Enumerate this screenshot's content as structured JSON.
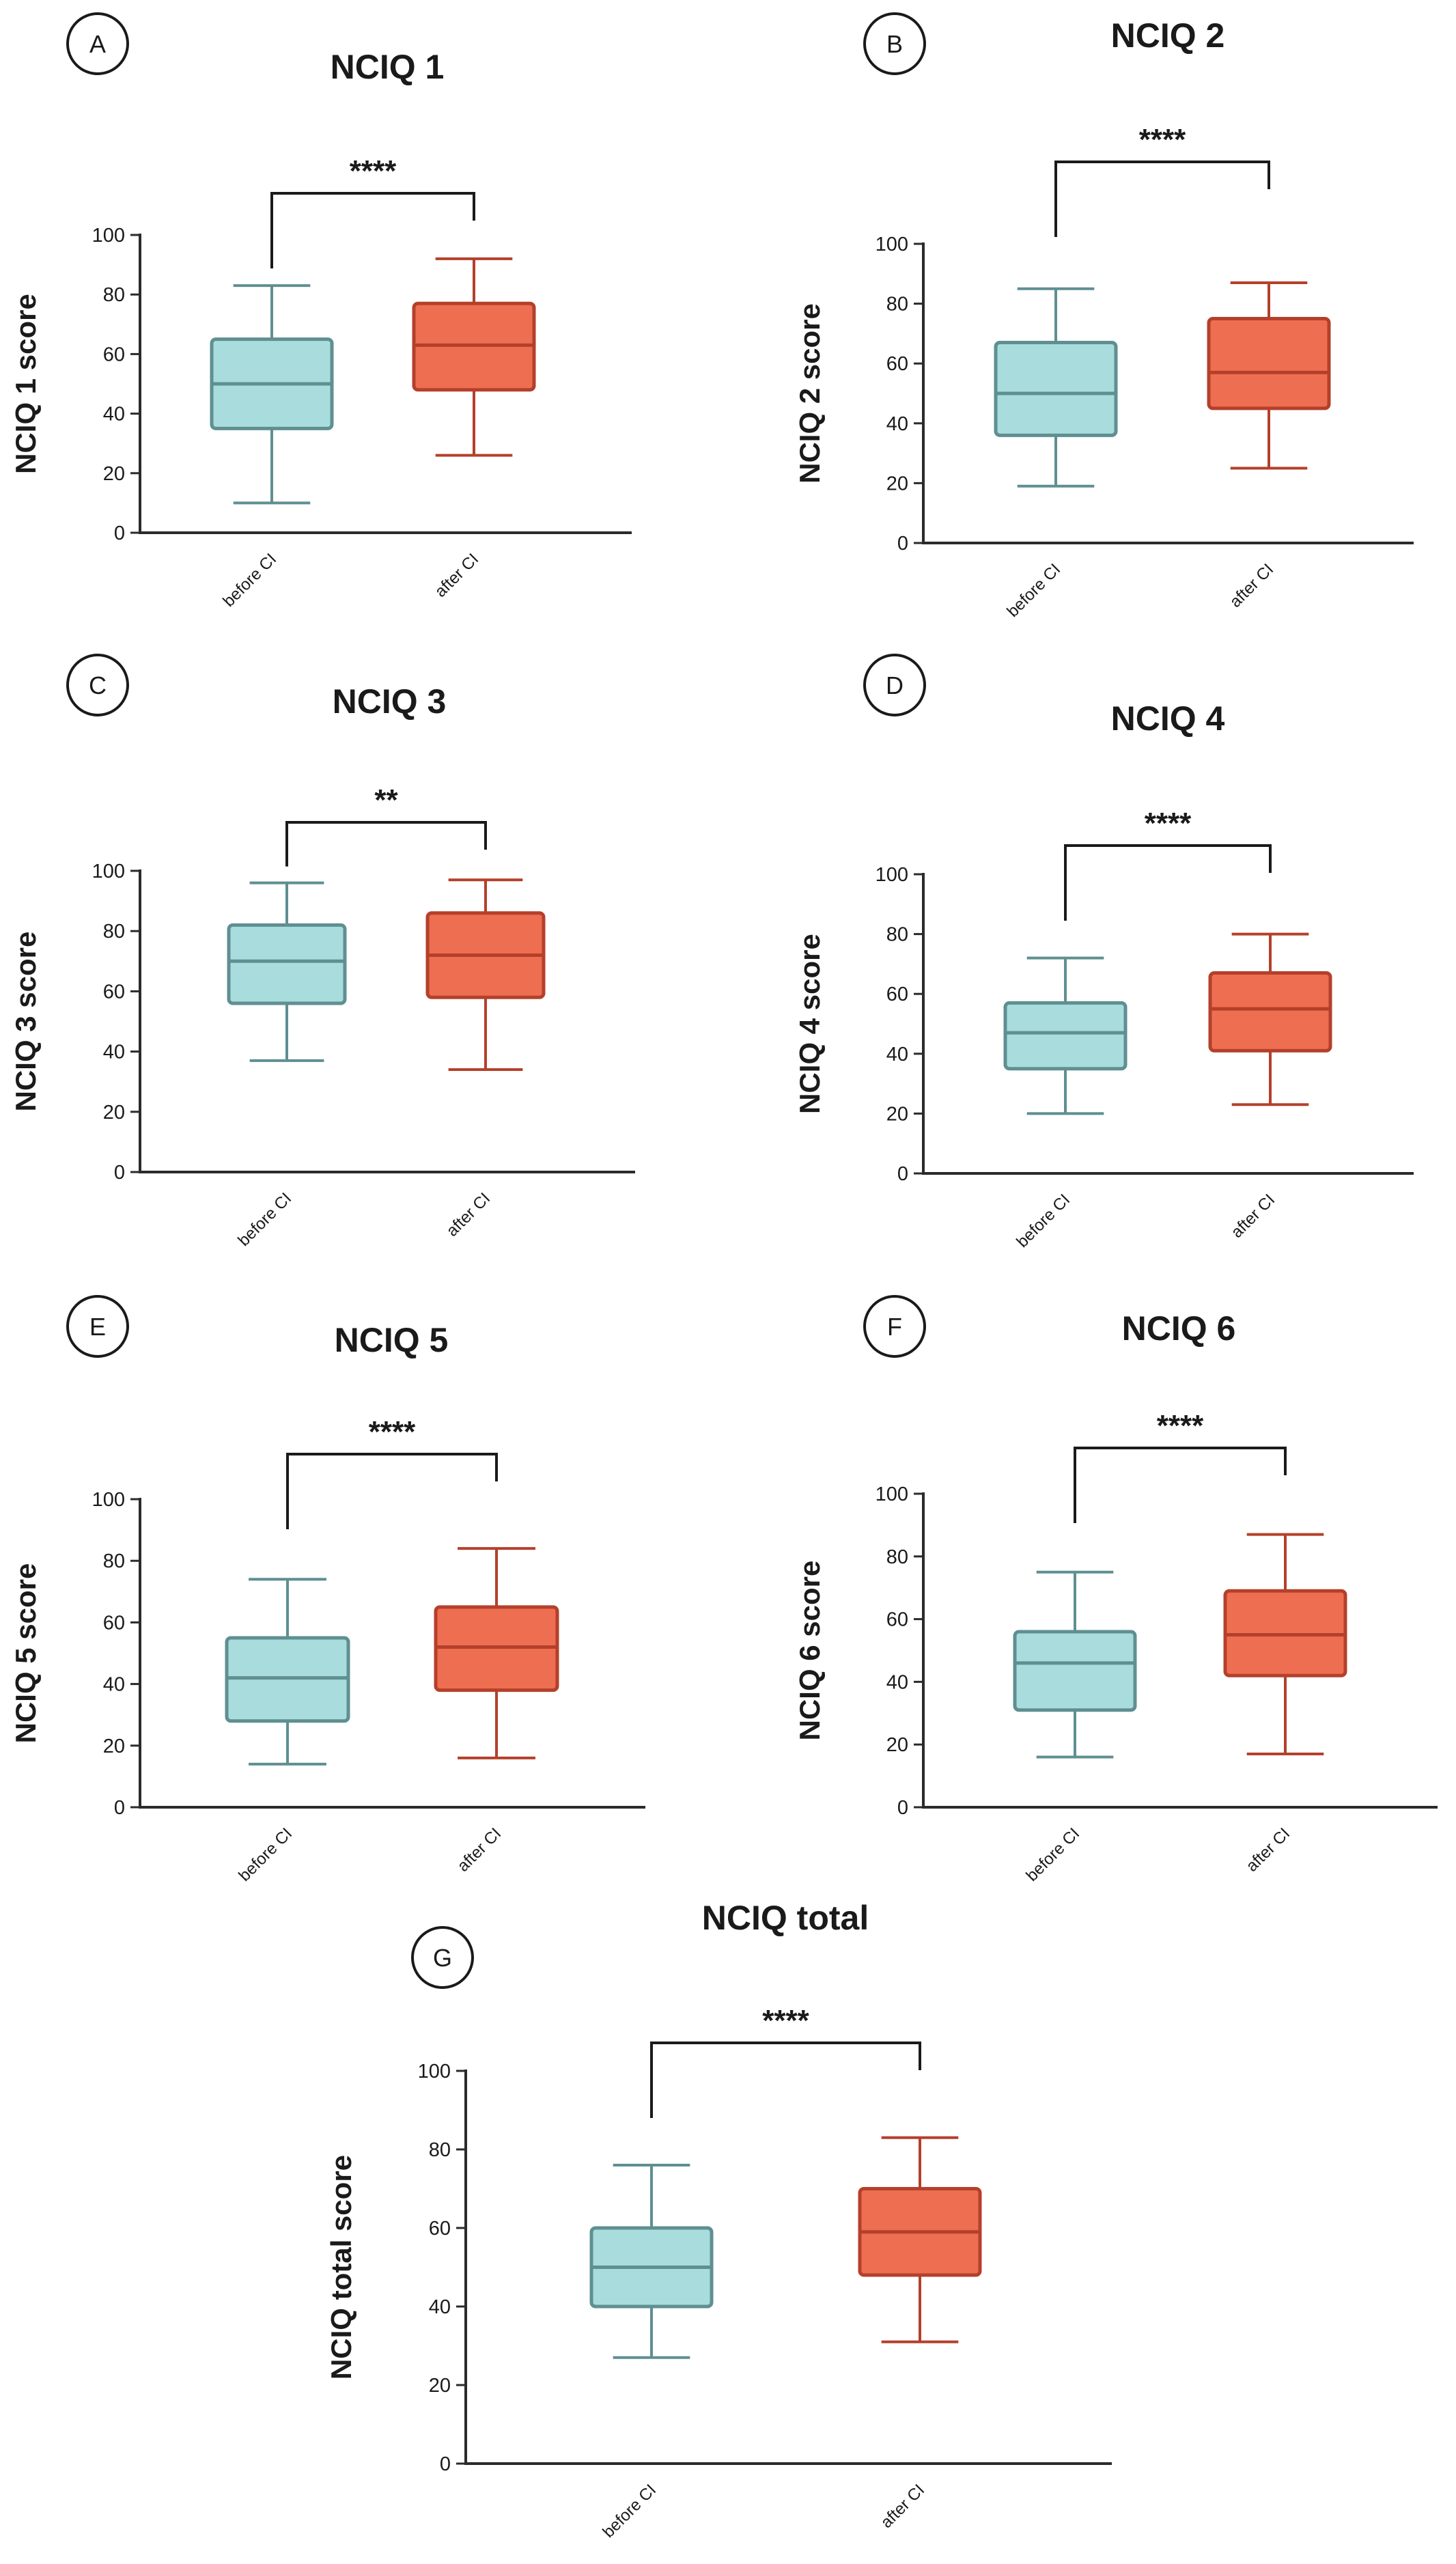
{
  "colors": {
    "before_fill": "#a9dcdc",
    "before_stroke": "#5f8f91",
    "after_fill": "#ee6e51",
    "after_stroke": "#b4402b",
    "axis": "#2b2b2b"
  },
  "chart_data": [
    {
      "panel": "A",
      "type": "box",
      "title": "NCIQ 1",
      "ylabel": "NCIQ 1 score",
      "categories": [
        "before CI",
        "after CI"
      ],
      "ylim": [
        0,
        100
      ],
      "yticks": [
        0,
        20,
        40,
        60,
        80,
        100
      ],
      "series": [
        {
          "name": "before CI",
          "min": 10,
          "q1": 35,
          "median": 50,
          "q3": 65,
          "max": 83
        },
        {
          "name": "after CI",
          "min": 26,
          "q1": 48,
          "median": 63,
          "q3": 77,
          "max": 92
        }
      ],
      "significance": "****"
    },
    {
      "panel": "B",
      "type": "box",
      "title": "NCIQ 2",
      "ylabel": "NCIQ 2 score",
      "categories": [
        "before CI",
        "after CI"
      ],
      "ylim": [
        0,
        100
      ],
      "yticks": [
        0,
        20,
        40,
        60,
        80,
        100
      ],
      "series": [
        {
          "name": "before CI",
          "min": 19,
          "q1": 36,
          "median": 50,
          "q3": 67,
          "max": 85
        },
        {
          "name": "after CI",
          "min": 25,
          "q1": 45,
          "median": 57,
          "q3": 75,
          "max": 87
        }
      ],
      "significance": "****"
    },
    {
      "panel": "C",
      "type": "box",
      "title": "NCIQ 3",
      "ylabel": "NCIQ 3 score",
      "categories": [
        "before CI",
        "after CI"
      ],
      "ylim": [
        0,
        100
      ],
      "yticks": [
        0,
        20,
        40,
        60,
        80,
        100
      ],
      "series": [
        {
          "name": "before CI",
          "min": 37,
          "q1": 56,
          "median": 70,
          "q3": 82,
          "max": 96
        },
        {
          "name": "after CI",
          "min": 34,
          "q1": 58,
          "median": 72,
          "q3": 86,
          "max": 97
        }
      ],
      "significance": "**"
    },
    {
      "panel": "D",
      "type": "box",
      "title": "NCIQ 4",
      "ylabel": "NCIQ 4 score",
      "categories": [
        "before CI",
        "after CI"
      ],
      "ylim": [
        0,
        100
      ],
      "yticks": [
        0,
        20,
        40,
        60,
        80,
        100
      ],
      "series": [
        {
          "name": "before CI",
          "min": 20,
          "q1": 35,
          "median": 47,
          "q3": 57,
          "max": 72
        },
        {
          "name": "after CI",
          "min": 23,
          "q1": 41,
          "median": 55,
          "q3": 67,
          "max": 80
        }
      ],
      "significance": "****"
    },
    {
      "panel": "E",
      "type": "box",
      "title": "NCIQ 5",
      "ylabel": "NCIQ 5 score",
      "categories": [
        "before CI",
        "after CI"
      ],
      "ylim": [
        0,
        100
      ],
      "yticks": [
        0,
        20,
        40,
        60,
        80,
        100
      ],
      "series": [
        {
          "name": "before CI",
          "min": 14,
          "q1": 28,
          "median": 42,
          "q3": 55,
          "max": 74
        },
        {
          "name": "after CI",
          "min": 16,
          "q1": 38,
          "median": 52,
          "q3": 65,
          "max": 84
        }
      ],
      "significance": "****"
    },
    {
      "panel": "F",
      "type": "box",
      "title": "NCIQ 6",
      "ylabel": "NCIQ 6 score",
      "categories": [
        "before CI",
        "after CI"
      ],
      "ylim": [
        0,
        100
      ],
      "yticks": [
        0,
        20,
        40,
        60,
        80,
        100
      ],
      "series": [
        {
          "name": "before CI",
          "min": 16,
          "q1": 31,
          "median": 46,
          "q3": 56,
          "max": 75
        },
        {
          "name": "after CI",
          "min": 17,
          "q1": 42,
          "median": 55,
          "q3": 69,
          "max": 87
        }
      ],
      "significance": "****"
    },
    {
      "panel": "G",
      "type": "box",
      "title": "NCIQ total",
      "ylabel": "NCIQ total score",
      "categories": [
        "before CI",
        "after CI"
      ],
      "ylim": [
        0,
        100
      ],
      "yticks": [
        0,
        20,
        40,
        60,
        80,
        100
      ],
      "series": [
        {
          "name": "before CI",
          "min": 27,
          "q1": 40,
          "median": 50,
          "q3": 60,
          "max": 76
        },
        {
          "name": "after CI",
          "min": 31,
          "q1": 48,
          "median": 59,
          "q3": 70,
          "max": 83
        }
      ],
      "significance": "****"
    }
  ]
}
